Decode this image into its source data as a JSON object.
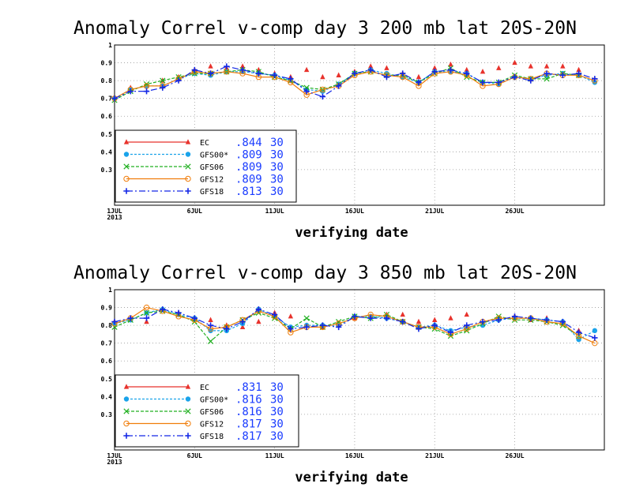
{
  "chart_data": [
    {
      "type": "line",
      "title": "Anomaly Correl v-comp day 3  200 mb   lat 20S-20N",
      "xlabel": "verifying date",
      "ylabel": "",
      "ylim": [
        0.1,
        1.0
      ],
      "yticks": [
        "1",
        "0.9",
        "0.8",
        "0.7",
        "0.6",
        "0.5",
        "0.4",
        "0.3"
      ],
      "ytick_values": [
        1.0,
        0.9,
        0.8,
        0.7,
        0.6,
        0.5,
        0.4,
        0.3
      ],
      "xticks": [
        {
          "day": 1,
          "label": "1JUL",
          "sub": "2013"
        },
        {
          "day": 6,
          "label": "6JUL",
          "sub": ""
        },
        {
          "day": 11,
          "label": "11JUL",
          "sub": ""
        },
        {
          "day": 16,
          "label": "16JUL",
          "sub": ""
        },
        {
          "day": 21,
          "label": "21JUL",
          "sub": ""
        },
        {
          "day": 26,
          "label": "26JUL",
          "sub": ""
        }
      ],
      "x": [
        1,
        2,
        3,
        4,
        5,
        6,
        7,
        8,
        9,
        10,
        11,
        12,
        13,
        14,
        15,
        16,
        17,
        18,
        19,
        20,
        21,
        22,
        23,
        24,
        25,
        26,
        27,
        28,
        29,
        30,
        31
      ],
      "series": [
        {
          "name": "EC",
          "score": ".844",
          "count": "30",
          "color": "#e8322c",
          "marker": "triangle",
          "dash": "",
          "values": [
            0.7,
            0.76,
            0.77,
            0.8,
            0.82,
            0.86,
            0.88,
            0.87,
            0.88,
            0.86,
            0.84,
            0.82,
            0.86,
            0.82,
            0.83,
            0.85,
            0.88,
            0.87,
            0.84,
            0.82,
            0.87,
            0.89,
            0.86,
            0.85,
            0.87,
            0.9,
            0.88,
            0.88,
            0.88,
            0.86,
            null
          ]
        },
        {
          "name": "GFS00*",
          "score": ".809",
          "count": "30",
          "color": "#1aa3ea",
          "marker": "circle-filled",
          "dash": "3,2",
          "values": [
            0.7,
            0.75,
            0.77,
            0.77,
            0.81,
            0.84,
            0.83,
            0.85,
            0.85,
            0.84,
            0.83,
            0.8,
            0.75,
            0.74,
            0.78,
            0.84,
            0.86,
            0.84,
            0.82,
            0.79,
            0.85,
            0.85,
            0.84,
            0.79,
            0.78,
            0.82,
            0.81,
            0.83,
            0.84,
            0.83,
            0.79
          ]
        },
        {
          "name": "GFS06",
          "score": ".809",
          "count": "30",
          "color": "#22b022",
          "marker": "x",
          "dash": "4,2",
          "values": [
            0.69,
            0.74,
            0.78,
            0.8,
            0.82,
            0.84,
            0.84,
            0.85,
            0.86,
            0.85,
            0.82,
            0.8,
            0.76,
            0.75,
            0.78,
            0.84,
            0.85,
            0.83,
            0.83,
            0.79,
            0.84,
            0.87,
            0.82,
            0.79,
            0.79,
            0.83,
            0.81,
            0.81,
            0.84,
            0.83,
            null
          ]
        },
        {
          "name": "GFS12",
          "score": ".809",
          "count": "30",
          "color": "#f07d0a",
          "marker": "circle-open",
          "dash": "",
          "values": [
            0.7,
            0.75,
            0.77,
            0.77,
            0.81,
            0.85,
            0.84,
            0.85,
            0.84,
            0.82,
            0.82,
            0.79,
            0.72,
            0.75,
            0.77,
            0.83,
            0.85,
            0.83,
            0.82,
            0.77,
            0.84,
            0.85,
            0.83,
            0.77,
            0.78,
            0.82,
            0.81,
            0.84,
            0.83,
            0.83,
            0.8
          ]
        },
        {
          "name": "GFS18",
          "score": ".813",
          "count": "30",
          "color": "#1428e6",
          "marker": "plus",
          "dash": "8,3,2,3",
          "values": [
            0.7,
            0.74,
            0.74,
            0.76,
            0.8,
            0.86,
            0.84,
            0.88,
            0.86,
            0.84,
            0.83,
            0.81,
            0.74,
            0.71,
            0.77,
            0.84,
            0.86,
            0.82,
            0.84,
            0.79,
            0.85,
            0.86,
            0.84,
            0.79,
            0.79,
            0.82,
            0.8,
            0.84,
            0.83,
            0.84,
            0.81
          ]
        }
      ]
    },
    {
      "type": "line",
      "title": "Anomaly Correl v-comp day 3  850 mb   lat 20S-20N",
      "xlabel": "verifying date",
      "ylabel": "",
      "ylim": [
        0.1,
        1.0
      ],
      "yticks": [
        "1",
        "0.9",
        "0.8",
        "0.7",
        "0.6",
        "0.5",
        "0.4",
        "0.3"
      ],
      "ytick_values": [
        1.0,
        0.9,
        0.8,
        0.7,
        0.6,
        0.5,
        0.4,
        0.3
      ],
      "xticks": [
        {
          "day": 1,
          "label": "1JUL",
          "sub": "2013"
        },
        {
          "day": 6,
          "label": "6JUL",
          "sub": ""
        },
        {
          "day": 11,
          "label": "11JUL",
          "sub": ""
        },
        {
          "day": 16,
          "label": "16JUL",
          "sub": ""
        },
        {
          "day": 21,
          "label": "21JUL",
          "sub": ""
        },
        {
          "day": 26,
          "label": "26JUL",
          "sub": ""
        }
      ],
      "x": [
        1,
        2,
        3,
        4,
        5,
        6,
        7,
        8,
        9,
        10,
        11,
        12,
        13,
        14,
        15,
        16,
        17,
        18,
        19,
        20,
        21,
        22,
        23,
        24,
        25,
        26,
        27,
        28,
        29,
        30,
        31
      ],
      "series": [
        {
          "name": "EC",
          "score": ".831",
          "count": "30",
          "color": "#e8322c",
          "marker": "triangle",
          "dash": "",
          "values": [
            0.82,
            0.84,
            0.82,
            0.89,
            0.87,
            0.84,
            0.83,
            0.8,
            0.79,
            0.82,
            0.87,
            0.85,
            0.8,
            0.79,
            0.81,
            0.84,
            0.85,
            0.86,
            0.86,
            0.82,
            0.83,
            0.84,
            0.86,
            0.81,
            0.84,
            0.85,
            0.83,
            0.84,
            0.82,
            0.77,
            null
          ]
        },
        {
          "name": "GFS00*",
          "score": ".816",
          "count": "30",
          "color": "#1aa3ea",
          "marker": "circle-filled",
          "dash": "3,2",
          "values": [
            0.81,
            0.83,
            0.87,
            0.89,
            0.86,
            0.84,
            0.77,
            0.77,
            0.81,
            0.89,
            0.85,
            0.79,
            0.8,
            0.8,
            0.8,
            0.85,
            0.85,
            0.84,
            0.82,
            0.79,
            0.8,
            0.77,
            0.79,
            0.8,
            0.83,
            0.84,
            0.84,
            0.83,
            0.82,
            0.72,
            0.77
          ]
        },
        {
          "name": "GFS06",
          "score": ".816",
          "count": "30",
          "color": "#22b022",
          "marker": "x",
          "dash": "4,2",
          "values": [
            0.79,
            0.83,
            0.87,
            0.88,
            0.86,
            0.82,
            0.71,
            0.79,
            0.83,
            0.87,
            0.84,
            0.78,
            0.84,
            0.79,
            0.82,
            0.85,
            0.84,
            0.86,
            0.82,
            0.79,
            0.78,
            0.74,
            0.77,
            0.81,
            0.85,
            0.83,
            0.83,
            0.82,
            0.8,
            0.74,
            null
          ]
        },
        {
          "name": "GFS12",
          "score": ".817",
          "count": "30",
          "color": "#f07d0a",
          "marker": "circle-open",
          "dash": "",
          "values": [
            0.81,
            0.84,
            0.9,
            0.88,
            0.85,
            0.83,
            0.78,
            0.79,
            0.83,
            0.88,
            0.85,
            0.76,
            0.79,
            0.79,
            0.81,
            0.84,
            0.86,
            0.85,
            0.82,
            0.79,
            0.79,
            0.75,
            0.78,
            0.82,
            0.84,
            0.84,
            0.84,
            0.82,
            0.81,
            0.74,
            0.7
          ]
        },
        {
          "name": "GFS18",
          "score": ".817",
          "count": "30",
          "color": "#1428e6",
          "marker": "plus",
          "dash": "8,3,2,3",
          "values": [
            0.82,
            0.84,
            0.84,
            0.89,
            0.87,
            0.84,
            0.8,
            0.78,
            0.82,
            0.89,
            0.86,
            0.78,
            0.79,
            0.8,
            0.79,
            0.85,
            0.84,
            0.84,
            0.82,
            0.78,
            0.8,
            0.76,
            0.8,
            0.82,
            0.83,
            0.85,
            0.84,
            0.83,
            0.82,
            0.76,
            0.73
          ]
        }
      ]
    }
  ]
}
